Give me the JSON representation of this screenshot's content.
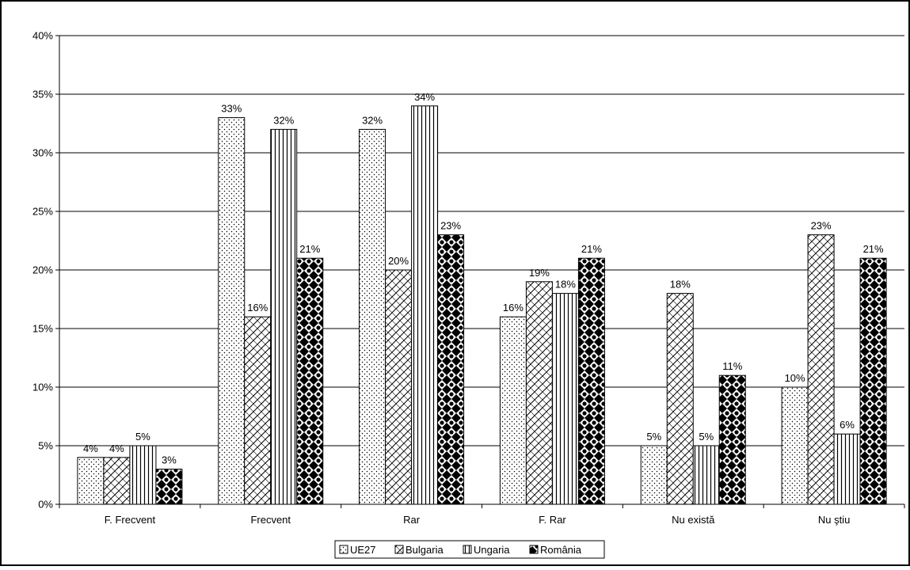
{
  "chart_data": {
    "type": "bar",
    "categories": [
      "F. Frecvent",
      "Frecvent",
      "Rar",
      "F. Rar",
      "Nu există",
      "Nu ştiu"
    ],
    "series": [
      {
        "name": "UE27",
        "values": [
          4,
          33,
          32,
          16,
          5,
          10
        ],
        "pattern": "dots"
      },
      {
        "name": "Bulgaria",
        "values": [
          4,
          16,
          20,
          19,
          18,
          23
        ],
        "pattern": "crosshatch"
      },
      {
        "name": "Ungaria",
        "values": [
          5,
          32,
          34,
          18,
          5,
          6
        ],
        "pattern": "vertical-lines"
      },
      {
        "name": "România",
        "values": [
          3,
          21,
          23,
          21,
          11,
          21
        ],
        "pattern": "checker-diamonds"
      }
    ],
    "y_ticks": [
      "0%",
      "5%",
      "10%",
      "15%",
      "20%",
      "25%",
      "30%",
      "35%",
      "40%"
    ],
    "ylim": [
      0,
      40
    ],
    "y_unit": "%",
    "gridlines": true,
    "legend_position": "bottom",
    "colors": {
      "bar_fill": "#ffffff",
      "pattern": "#000000",
      "grid": "#000000",
      "frame": "#000000"
    }
  }
}
